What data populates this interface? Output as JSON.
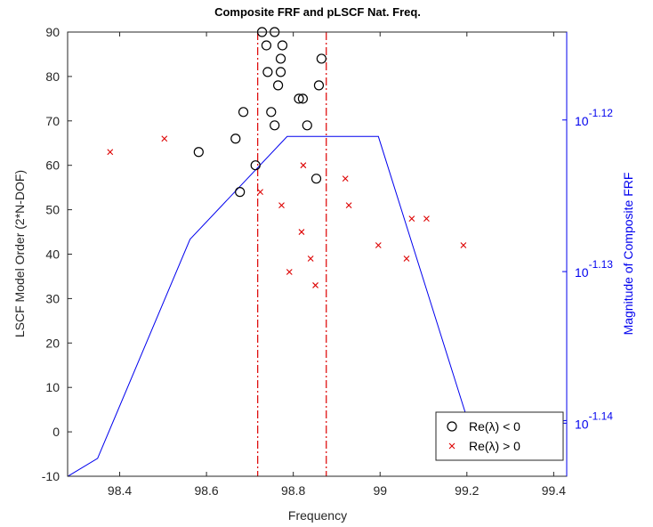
{
  "chart_data": {
    "type": "scatter",
    "title": "Composite FRF and pLSCF Nat. Freq.",
    "xlabel": "Frequency",
    "ylabel_left": "LSCF Model Order (2*N-DOF)",
    "ylabel_right": "Magnitude of Composite FRF",
    "xlim": [
      98.28,
      99.43
    ],
    "ylim_left": [
      -10,
      90
    ],
    "ylim_right_exponent": [
      -1.1435,
      -1.1142
    ],
    "right_scale": "log",
    "x_ticks": [
      "98.4",
      "98.6",
      "98.8",
      "99",
      "99.2",
      "99.4"
    ],
    "x_tick_values": [
      98.4,
      98.6,
      98.8,
      99.0,
      99.2,
      99.4
    ],
    "y_ticks_left": [
      "-10",
      "0",
      "10",
      "20",
      "30",
      "40",
      "50",
      "60",
      "70",
      "80",
      "90"
    ],
    "y_tick_values_left": [
      -10,
      0,
      10,
      20,
      30,
      40,
      50,
      60,
      70,
      80,
      90
    ],
    "y_ticks_right": [
      {
        "base": "10",
        "exp": "-1.12",
        "value": -1.12
      },
      {
        "base": "10",
        "exp": "-1.13",
        "value": -1.13
      },
      {
        "base": "10",
        "exp": "-1.14",
        "value": -1.14
      }
    ],
    "vlines": [
      98.718,
      98.876
    ],
    "vline_color": "#dd0000",
    "series": [
      {
        "name": "Re(λ) < 0",
        "marker": "circle",
        "color": "#000000",
        "axis": "left",
        "points": [
          [
            98.582,
            63
          ],
          [
            98.667,
            66
          ],
          [
            98.677,
            54
          ],
          [
            98.685,
            72
          ],
          [
            98.713,
            60
          ],
          [
            98.728,
            90
          ],
          [
            98.757,
            90
          ],
          [
            98.738,
            87
          ],
          [
            98.775,
            87
          ],
          [
            98.741,
            81
          ],
          [
            98.771,
            84
          ],
          [
            98.865,
            84
          ],
          [
            98.771,
            81
          ],
          [
            98.765,
            78
          ],
          [
            98.859,
            78
          ],
          [
            98.813,
            75
          ],
          [
            98.822,
            75
          ],
          [
            98.749,
            72
          ],
          [
            98.757,
            69
          ],
          [
            98.832,
            69
          ],
          [
            98.853,
            57
          ]
        ]
      },
      {
        "name": "Re(λ) > 0",
        "marker": "x",
        "color": "#dd0000",
        "axis": "left",
        "points": [
          [
            98.378,
            63
          ],
          [
            98.503,
            66
          ],
          [
            98.724,
            54
          ],
          [
            98.773,
            51
          ],
          [
            98.823,
            60
          ],
          [
            98.92,
            57
          ],
          [
            98.928,
            51
          ],
          [
            98.819,
            45
          ],
          [
            98.996,
            42
          ],
          [
            99.073,
            48
          ],
          [
            99.107,
            48
          ],
          [
            99.192,
            42
          ],
          [
            98.84,
            39
          ],
          [
            99.061,
            39
          ],
          [
            98.791,
            36
          ],
          [
            98.851,
            33
          ]
        ]
      },
      {
        "name": "Composite FRF",
        "marker": "line",
        "color": "#0000ee",
        "axis": "right",
        "points": [
          [
            98.28,
            -1.14351
          ],
          [
            98.349,
            -1.14232
          ],
          [
            98.562,
            -1.12787
          ],
          [
            98.786,
            -1.12109
          ],
          [
            98.996,
            -1.12109
          ],
          [
            99.21,
            -1.14055
          ],
          [
            99.43,
            -1.13982
          ]
        ]
      }
    ],
    "legend": {
      "placement": "bottom-right",
      "entries": [
        {
          "label": "Re(λ) < 0",
          "marker": "circle"
        },
        {
          "label": "Re(λ) > 0",
          "marker": "x"
        }
      ]
    },
    "grid": false
  }
}
